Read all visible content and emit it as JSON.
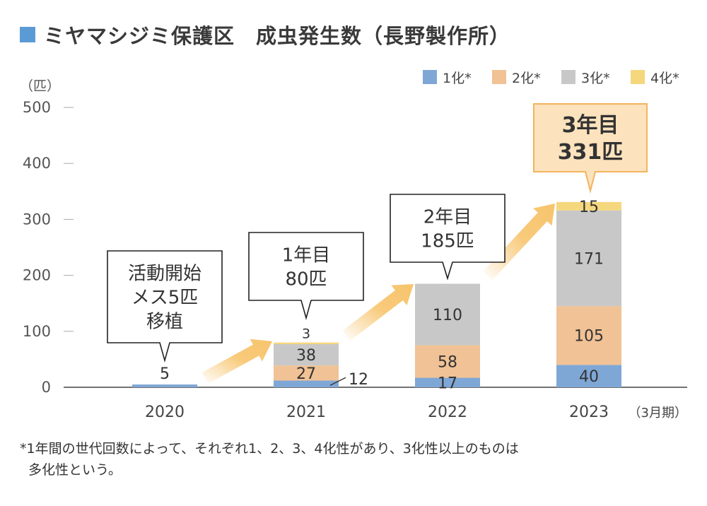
{
  "title": "ミヤマシジミ保護区　成虫発生数（長野製作所）",
  "chart_data": {
    "type": "bar",
    "stacked": true,
    "ylabel": "（匹）",
    "ylim": [
      0,
      500
    ],
    "yticks": [
      0,
      100,
      200,
      300,
      400,
      500
    ],
    "x_unit_note": "（3月期）",
    "legend_position": "top-right",
    "grid": false,
    "categories": [
      "2020",
      "2021",
      "2022",
      "2023"
    ],
    "series": [
      {
        "name": "1化*",
        "color": "#7fa7d6",
        "values": [
          5,
          12,
          17,
          40
        ],
        "labels": [
          "",
          "12",
          "17",
          "40"
        ]
      },
      {
        "name": "2化*",
        "color": "#f1c295",
        "values": [
          0,
          27,
          58,
          105
        ],
        "labels": [
          "",
          "27",
          "58",
          "105"
        ]
      },
      {
        "name": "3化*",
        "color": "#c8c8c8",
        "values": [
          0,
          38,
          110,
          171
        ],
        "labels": [
          "",
          "38",
          "110",
          "171"
        ]
      },
      {
        "name": "4化*",
        "color": "#f5d77e",
        "values": [
          0,
          3,
          0,
          15
        ],
        "labels": [
          "",
          "3",
          "",
          "15"
        ]
      }
    ],
    "total_labels": [
      "5",
      "",
      "",
      ""
    ],
    "callouts": [
      {
        "category": "2020",
        "lines": [
          "活動開始",
          "メス5匹",
          "移植"
        ],
        "highlight": false
      },
      {
        "category": "2021",
        "lines": [
          "1年目",
          "80匹"
        ],
        "highlight": false
      },
      {
        "category": "2022",
        "lines": [
          "2年目",
          "185匹"
        ],
        "highlight": false
      },
      {
        "category": "2023",
        "lines": [
          "3年目",
          "331匹"
        ],
        "highlight": true
      }
    ]
  },
  "footnote": {
    "line1": "*1年間の世代回数によって、それぞれ1、2、3、4化性があり、3化性以上のものは",
    "line2": "多化性という。"
  },
  "colors": {
    "title_square": "#5b9bd5",
    "arrow": "#f7c46c",
    "highlight_fill": "#fde3bd",
    "highlight_stroke": "#f2b45d"
  }
}
